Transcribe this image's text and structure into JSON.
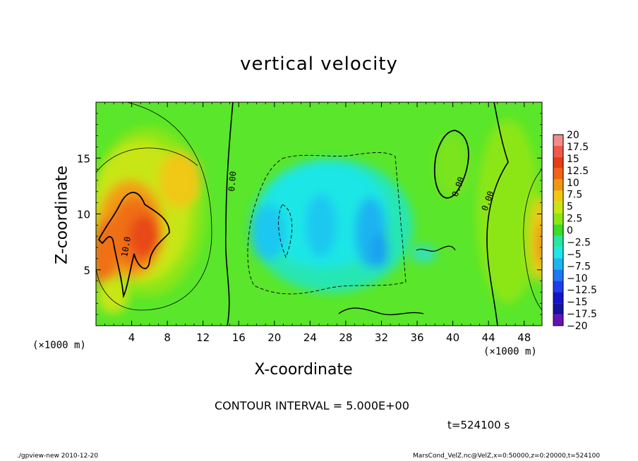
{
  "chart_data": {
    "type": "heatmap",
    "title": "vertical velocity",
    "xlabel": "X-coordinate",
    "ylabel": "Z-coordinate",
    "x_unit_label": "(×1000 m)",
    "x_ticks": [
      4,
      8,
      12,
      16,
      20,
      24,
      28,
      32,
      36,
      40,
      44,
      48
    ],
    "y_ticks": [
      5,
      10,
      15
    ],
    "xlim": [
      0,
      50
    ],
    "ylim": [
      0,
      20
    ],
    "colorbar": {
      "levels": [
        "20",
        "17.5",
        "15",
        "12.5",
        "10",
        "7.5",
        "5",
        "2.5",
        "0",
        "−2.5",
        "−5",
        "−7.5",
        "−10",
        "−12.5",
        "−15",
        "−17.5",
        "−20"
      ],
      "colors": [
        "#f08c8c",
        "#f05a4a",
        "#e83c14",
        "#f06414",
        "#f09614",
        "#f0c814",
        "#c8e614",
        "#8ce614",
        "#3cdc28",
        "#28e6a0",
        "#1ee6e6",
        "#1eb4f0",
        "#1e78f0",
        "#1e3cf0",
        "#1414c8",
        "#1414a0",
        "#6414b4"
      ]
    },
    "contour_labels": [
      "0.00",
      "0.00",
      "0.00",
      "10.0"
    ],
    "contour_interval_text": "CONTOUR INTERVAL = 5.000E+00"
  },
  "time_text": "t=524100 s",
  "footer": {
    "left": "./gpview-new  2010-12-20",
    "right": "MarsCond_VelZ.nc@VelZ,x=0:50000,z=0:20000,t=524100"
  }
}
